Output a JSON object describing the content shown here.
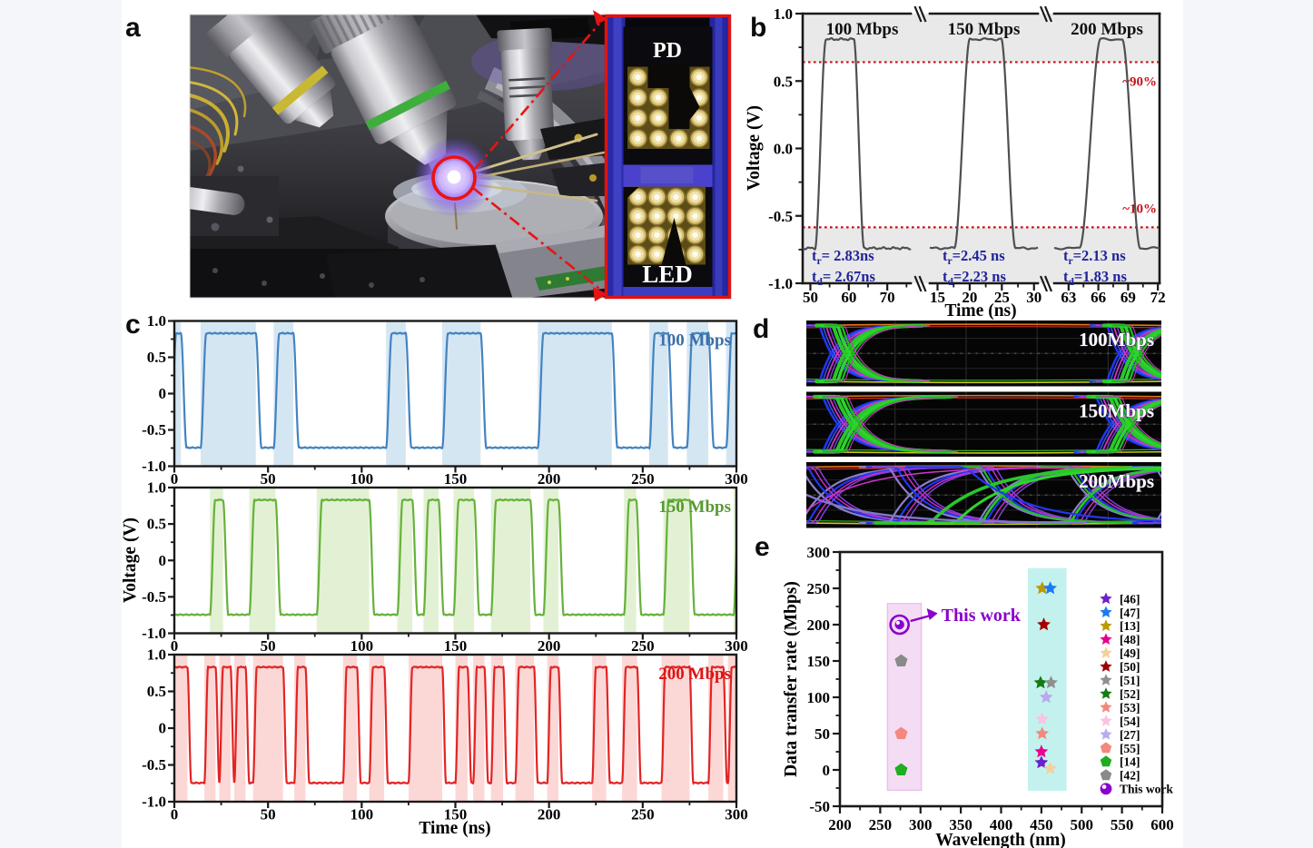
{
  "page": {
    "background": "#f4f6f9",
    "canvas": "#ffffff"
  },
  "panels": {
    "a": {
      "letter": "a",
      "inset": {
        "pd_label": "PD",
        "led_label": "LED"
      }
    },
    "b": {
      "letter": "b"
    },
    "c": {
      "letter": "c"
    },
    "d": {
      "letter": "d",
      "labels": [
        "100Mbps",
        "150Mbps",
        "200Mbps"
      ]
    },
    "e": {
      "letter": "e"
    }
  },
  "chart_data": [
    {
      "id": "b",
      "type": "line",
      "xlabel": "Time (ns)",
      "ylabel": "Voltage (V)",
      "ylim": [
        -1,
        1
      ],
      "yticks": [
        {
          "v": 1.0,
          "label": "1.0"
        },
        {
          "v": 0.5,
          "label": "0.5"
        },
        {
          "v": 0.0,
          "label": "0.0"
        },
        {
          "v": -0.5,
          "label": "-0.5"
        },
        {
          "v": -1.0,
          "label": "-1.0"
        }
      ],
      "high_level": 0.81,
      "low_level": -0.74,
      "line_color": "#4f4f52",
      "band_fill": "#e9e9e9",
      "ref_color": "#c41218",
      "ref_lines": {
        "high": 0.64,
        "low": -0.585,
        "high_label": "~90%",
        "low_label": "~10%"
      },
      "segments": [
        {
          "title": "100 Mbps",
          "xlim": [
            48,
            76.1
          ],
          "xticks": [
            50,
            60,
            70
          ],
          "minor": [
            55,
            65,
            75
          ],
          "pulse": {
            "rise_start": 51.2,
            "rise_ns": 2.83,
            "fall_start": 61.3,
            "fall_ns": 2.67
          },
          "rise_text": {
            "base": "t",
            "sub": "r",
            "rest": "= 2.83ns"
          },
          "fall_text": {
            "base": "t",
            "sub": "d",
            "rest": "= 2.67ns"
          }
        },
        {
          "title": "150 Mbps",
          "xlim": [
            13.8,
            30.6
          ],
          "xticks": [
            15,
            20,
            25,
            30
          ],
          "minor": [
            17.5,
            22.5,
            27.5
          ],
          "pulse": {
            "rise_start": 17.6,
            "rise_ns": 2.45,
            "fall_start": 24.9,
            "fall_ns": 2.23
          },
          "rise_text": {
            "base": "t",
            "sub": "r",
            "rest": "=2.45 ns"
          },
          "fall_text": {
            "base": "t",
            "sub": "d",
            "rest": "=2.23 ns"
          }
        },
        {
          "title": "200 Mbps",
          "xlim": [
            61.55,
            72.17
          ],
          "xticks": [
            63,
            66,
            69,
            72
          ],
          "minor": [
            64.5,
            67.5,
            70.5
          ],
          "pulse": {
            "rise_start": 64.1,
            "rise_ns": 2.13,
            "fall_start": 68.4,
            "fall_ns": 1.83
          },
          "rise_text": {
            "base": "t",
            "sub": "r",
            "rest": "=2.13 ns"
          },
          "fall_text": {
            "base": "t",
            "sub": "d",
            "rest": "=1.83 ns"
          }
        }
      ]
    },
    {
      "id": "c",
      "type": "line",
      "xlabel": "Time (ns)",
      "ylabel": "Voltage (V)",
      "xlim": [
        0,
        300
      ],
      "xticks": [
        0,
        50,
        100,
        150,
        200,
        250,
        300
      ],
      "ylim": [
        -1,
        1
      ],
      "yticks": [
        {
          "v": 1.0,
          "label": "1.0"
        },
        {
          "v": 0.5,
          "label": "0.5"
        },
        {
          "v": 0.0,
          "label": "0"
        },
        {
          "v": -0.5,
          "label": "-0.5"
        },
        {
          "v": -1.0,
          "label": "-1.0"
        }
      ],
      "high_level": 0.83,
      "low_level": -0.745,
      "series": [
        {
          "label": "100 Mbps",
          "line_color": "#4383c0",
          "band_color": "#d5e6f3",
          "label_color": "#3b6fa8",
          "edge_ns": 3.0,
          "high_intervals": [
            [
              -2,
              3.5
            ],
            [
              14,
              43.5
            ],
            [
              53,
              63.5
            ],
            [
              113,
              123.5
            ],
            [
              143,
              163.5
            ],
            [
              194,
              233.5
            ],
            [
              253.5,
              263.5
            ],
            [
              273.5,
              285
            ],
            [
              294.5,
              302
            ]
          ]
        },
        {
          "label": "150 Mbps",
          "line_color": "#66b13a",
          "band_color": "#e2f1d3",
          "label_color": "#569a30",
          "edge_ns": 2.8,
          "high_intervals": [
            [
              19,
              26
            ],
            [
              40,
              54
            ],
            [
              76,
              104
            ],
            [
              119,
              127
            ],
            [
              133,
              141
            ],
            [
              149,
              160
            ],
            [
              169,
              190
            ],
            [
              197,
              205
            ],
            [
              240,
              246.5
            ],
            [
              261,
              275
            ],
            [
              298.5,
              302
            ]
          ]
        },
        {
          "label": "200 Mbps",
          "line_color": "#e32424",
          "band_color": "#fbd8d6",
          "label_color": "#dd1515",
          "edge_ns": 2.0,
          "high_intervals": [
            [
              -2,
              7
            ],
            [
              16,
              22
            ],
            [
              24,
              30
            ],
            [
              32,
              38
            ],
            [
              42,
              58
            ],
            [
              64,
              70
            ],
            [
              90,
              97.5
            ],
            [
              104,
              112
            ],
            [
              125,
              143
            ],
            [
              150,
              156.5
            ],
            [
              159.5,
              165.5
            ],
            [
              169,
              175.5
            ],
            [
              182,
              192
            ],
            [
              199,
              205
            ],
            [
              223,
              230.5
            ],
            [
              239,
              247
            ],
            [
              260,
              275
            ],
            [
              285,
              293
            ],
            [
              295.5,
              302
            ]
          ]
        }
      ]
    },
    {
      "id": "d",
      "type": "eye",
      "labels": [
        "100Mbps",
        "150Mbps",
        "200Mbps"
      ]
    },
    {
      "id": "e",
      "type": "scatter",
      "xlabel": "Wavelength (nm)",
      "ylabel": "Data transfer rate (Mbps)",
      "xlim": [
        200,
        600
      ],
      "ylim": [
        -50,
        300
      ],
      "xticks": [
        200,
        250,
        300,
        350,
        400,
        450,
        500,
        550,
        600
      ],
      "yticks": [
        -50,
        0,
        50,
        100,
        150,
        200,
        250,
        300
      ],
      "bands": [
        {
          "x": [
            259,
            301
          ],
          "y": [
            -28,
            229
          ],
          "fill": "#f5dcf5",
          "edge": "#eabfea"
        },
        {
          "x": [
            434,
            480.5
          ],
          "y": [
            -28,
            277
          ],
          "fill": "#c3f2ee",
          "edge": "#c3f2ee"
        }
      ],
      "points": [
        {
          "x": 274,
          "y": 200,
          "marker": "sphere",
          "color": "#8a00cc",
          "ref": "This work"
        },
        {
          "x": 276,
          "y": 150,
          "marker": "pentagon",
          "color": "#8a8a8a",
          "ref": "[42]"
        },
        {
          "x": 276,
          "y": 50,
          "marker": "pentagon",
          "color": "#f4887e",
          "ref": "[55]"
        },
        {
          "x": 276,
          "y": 0,
          "marker": "pentagon",
          "color": "#1fae1f",
          "ref": "[14]"
        },
        {
          "x": 451,
          "y": 250,
          "marker": "star",
          "color": "#b89b00",
          "ref": "[13]"
        },
        {
          "x": 461,
          "y": 250,
          "marker": "star",
          "color": "#1e7af0",
          "ref": "[47]"
        },
        {
          "x": 453,
          "y": 200,
          "marker": "star",
          "color": "#a00000",
          "ref": "[50]"
        },
        {
          "x": 449,
          "y": 120,
          "marker": "star",
          "color": "#157a15",
          "ref": "[52]"
        },
        {
          "x": 462,
          "y": 120,
          "marker": "star",
          "color": "#8f8f8f",
          "ref": "[51]"
        },
        {
          "x": 456,
          "y": 100,
          "marker": "star",
          "color": "#b9a9ef",
          "ref": "[27]"
        },
        {
          "x": 451,
          "y": 70,
          "marker": "star",
          "color": "#f9c3e1",
          "ref": "[54]"
        },
        {
          "x": 451,
          "y": 50,
          "marker": "star",
          "color": "#f4887e",
          "ref": "[53]"
        },
        {
          "x": 450,
          "y": 25,
          "marker": "star",
          "color": "#e80090",
          "ref": "[48]"
        },
        {
          "x": 450,
          "y": 10,
          "marker": "star",
          "color": "#6a1fd0",
          "ref": "[46]"
        },
        {
          "x": 461,
          "y": 2,
          "marker": "star",
          "color": "#f2d29b",
          "ref": "[49]"
        }
      ],
      "legend": [
        {
          "label": "[46]",
          "marker": "star",
          "color": "#6a1fd0"
        },
        {
          "label": "[47]",
          "marker": "star",
          "color": "#1e7af0"
        },
        {
          "label": "[13]",
          "marker": "star",
          "color": "#b89b00"
        },
        {
          "label": "[48]",
          "marker": "star",
          "color": "#e80090"
        },
        {
          "label": "[49]",
          "marker": "star",
          "color": "#f2d29b"
        },
        {
          "label": "[50]",
          "marker": "star",
          "color": "#a00000"
        },
        {
          "label": "[51]",
          "marker": "star",
          "color": "#8f8f8f"
        },
        {
          "label": "[52]",
          "marker": "star",
          "color": "#157a15"
        },
        {
          "label": "[53]",
          "marker": "star",
          "color": "#f4887e"
        },
        {
          "label": "[54]",
          "marker": "star",
          "color": "#f9c3e1"
        },
        {
          "label": "[27]",
          "marker": "star",
          "color": "#b9a9ef"
        },
        {
          "label": "[55]",
          "marker": "pentagon",
          "color": "#f4887e"
        },
        {
          "label": "[14]",
          "marker": "pentagon",
          "color": "#1fae1f"
        },
        {
          "label": "[42]",
          "marker": "pentagon",
          "color": "#8a8a8a"
        },
        {
          "label": "This work",
          "marker": "sphere",
          "color": "#8a00cc",
          "label_color": "#8a00cc"
        }
      ],
      "annotation": {
        "text": "This work",
        "color": "#8a00cc"
      }
    }
  ]
}
